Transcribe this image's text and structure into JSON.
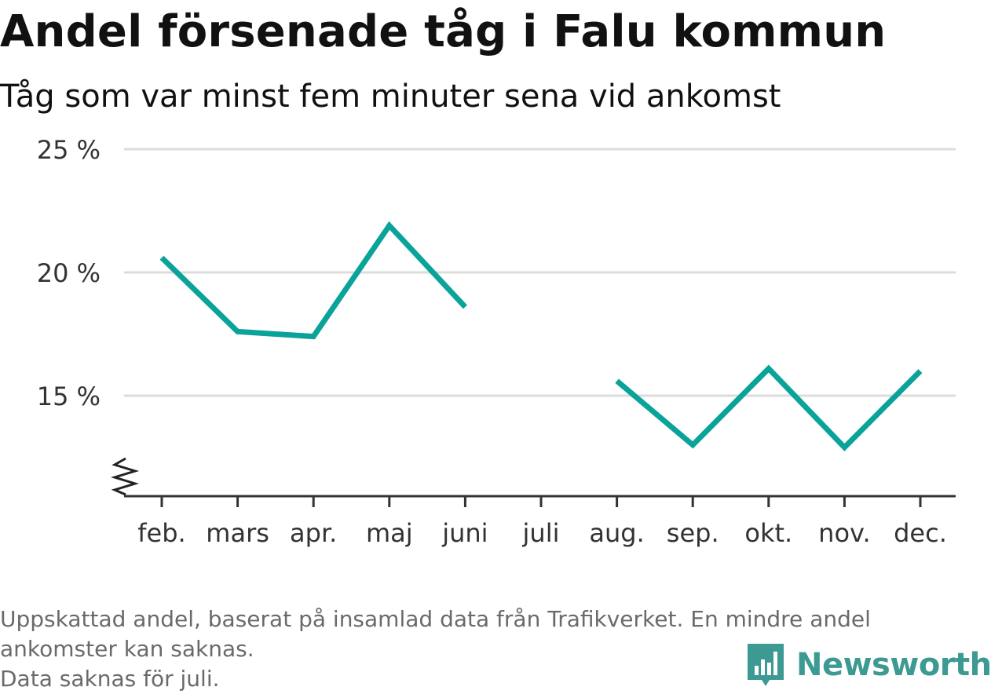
{
  "chart_data": {
    "type": "line",
    "title": "Andel försenade tåg i Falu kommun",
    "subtitle": "Tåg som var minst fem minuter sena vid ankomst",
    "categories": [
      "feb.",
      "mars",
      "apr.",
      "maj",
      "juni",
      "juli",
      "aug.",
      "sep.",
      "okt.",
      "nov.",
      "dec."
    ],
    "series": [
      {
        "values": [
          20.6,
          17.6,
          17.4,
          21.9,
          18.6,
          null,
          15.6,
          13.0,
          16.1,
          12.9,
          16.0
        ]
      }
    ],
    "yticks": [
      15,
      20,
      25
    ],
    "ytick_labels": [
      "15 %",
      "20 %",
      "25 %"
    ],
    "ylim": [
      11,
      25
    ],
    "y_axis_break": true,
    "grid": true,
    "line_color": "#0aa39a"
  },
  "footer": {
    "note_line1": "Uppskattad andel, baserat på insamlad data från Trafikverket. En mindre andel",
    "note_line2": "ankomster kan saknas.",
    "note_line3": "Data saknas för juli."
  },
  "brand": {
    "name": "Newsworthy",
    "icon": "newsworthy-logo-icon",
    "color": "#3d9a92"
  }
}
